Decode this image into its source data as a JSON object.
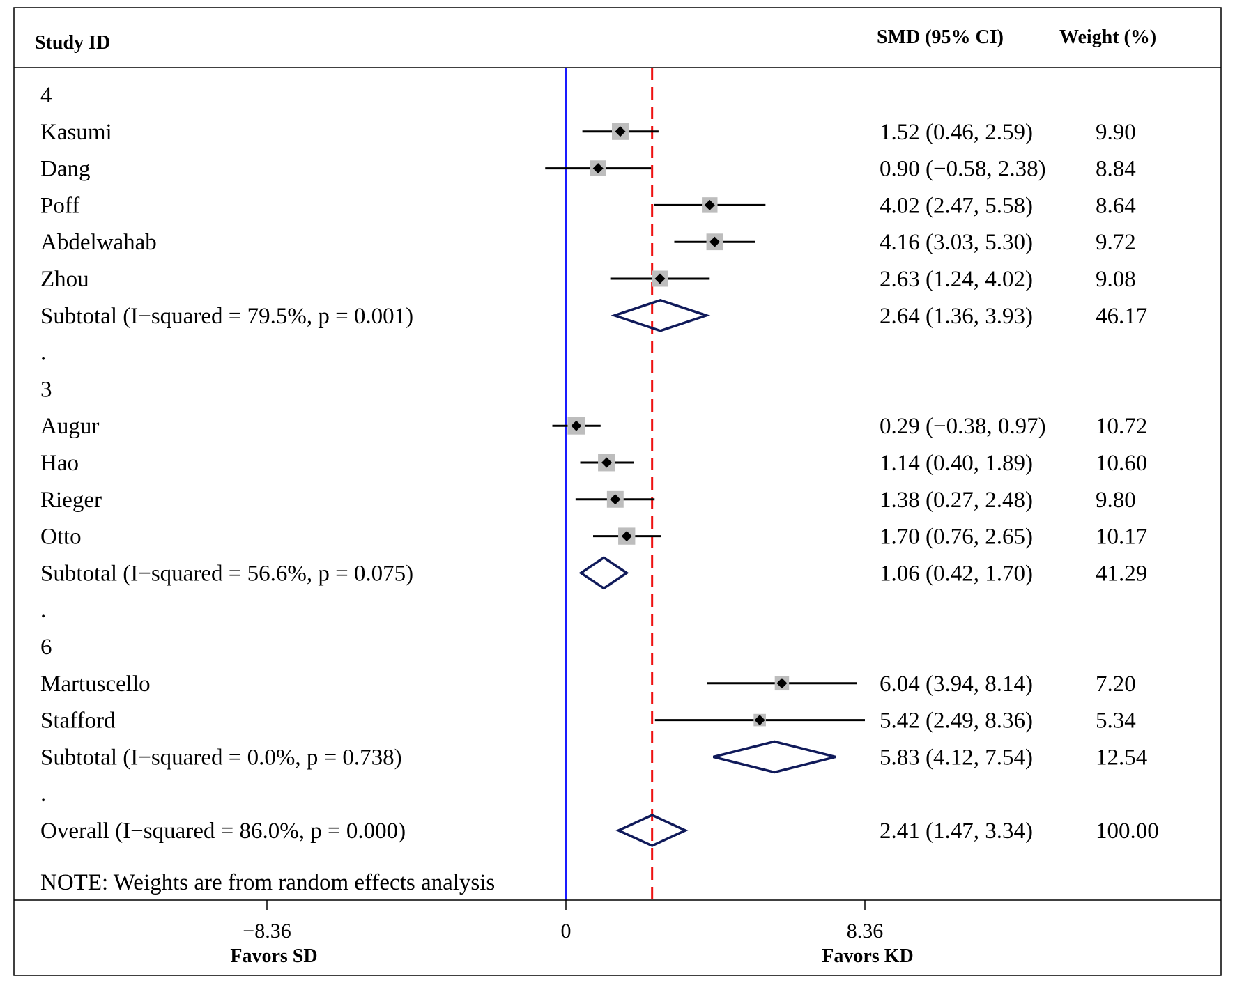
{
  "chart_data": {
    "type": "forest",
    "headers": {
      "study": "Study ID",
      "smd": "SMD (95% CI)",
      "weight": "Weight (%)"
    },
    "xlim": [
      -8.36,
      8.36
    ],
    "ticks": [
      {
        "value": -8.36,
        "label": "−8.36"
      },
      {
        "value": 0,
        "label": "0"
      },
      {
        "value": 8.36,
        "label": "8.36"
      }
    ],
    "null_line": 0,
    "overall_line": 2.41,
    "colors": {
      "null_line": "#1a1aff",
      "overall_line": "#ee1111",
      "diamond": "#101a5a",
      "box": "#bdbdbd",
      "ci": "#000000"
    },
    "xlabel_left": "Favors SD",
    "xlabel_right": "Favors KD",
    "note": "NOTE: Weights are from random effects analysis",
    "rows": [
      {
        "kind": "group",
        "label": "4"
      },
      {
        "kind": "study",
        "label": "Kasumi",
        "est": 1.52,
        "lo": 0.46,
        "hi": 2.59,
        "weight": 9.9,
        "ci_text": "1.52 (0.46, 2.59)",
        "weight_text": "9.90"
      },
      {
        "kind": "study",
        "label": "Dang",
        "est": 0.9,
        "lo": -0.58,
        "hi": 2.38,
        "weight": 8.84,
        "ci_text": "0.90 (−0.58, 2.38)",
        "weight_text": "8.84"
      },
      {
        "kind": "study",
        "label": "Poff",
        "est": 4.02,
        "lo": 2.47,
        "hi": 5.58,
        "weight": 8.64,
        "ci_text": "4.02 (2.47, 5.58)",
        "weight_text": "8.64"
      },
      {
        "kind": "study",
        "label": "Abdelwahab",
        "est": 4.16,
        "lo": 3.03,
        "hi": 5.3,
        "weight": 9.72,
        "ci_text": "4.16 (3.03, 5.30)",
        "weight_text": "9.72"
      },
      {
        "kind": "study",
        "label": "Zhou",
        "est": 2.63,
        "lo": 1.24,
        "hi": 4.02,
        "weight": 9.08,
        "ci_text": "2.63 (1.24, 4.02)",
        "weight_text": "9.08"
      },
      {
        "kind": "subtotal",
        "label": "Subtotal  (I−squared = 79.5%, p = 0.001)",
        "est": 2.64,
        "lo": 1.36,
        "hi": 3.93,
        "weight": 46.17,
        "ci_text": "2.64 (1.36, 3.93)",
        "weight_text": "46.17"
      },
      {
        "kind": "spacer",
        "label": "."
      },
      {
        "kind": "group",
        "label": "3"
      },
      {
        "kind": "study",
        "label": "Augur",
        "est": 0.29,
        "lo": -0.38,
        "hi": 0.97,
        "weight": 10.72,
        "ci_text": "0.29 (−0.38, 0.97)",
        "weight_text": "10.72"
      },
      {
        "kind": "study",
        "label": "Hao",
        "est": 1.14,
        "lo": 0.4,
        "hi": 1.89,
        "weight": 10.6,
        "ci_text": "1.14 (0.40, 1.89)",
        "weight_text": "10.60"
      },
      {
        "kind": "study",
        "label": "Rieger",
        "est": 1.38,
        "lo": 0.27,
        "hi": 2.48,
        "weight": 9.8,
        "ci_text": "1.38 (0.27, 2.48)",
        "weight_text": "9.80"
      },
      {
        "kind": "study",
        "label": "Otto",
        "est": 1.7,
        "lo": 0.76,
        "hi": 2.65,
        "weight": 10.17,
        "ci_text": "1.70 (0.76, 2.65)",
        "weight_text": "10.17"
      },
      {
        "kind": "subtotal",
        "label": "Subtotal  (I−squared = 56.6%, p = 0.075)",
        "est": 1.06,
        "lo": 0.42,
        "hi": 1.7,
        "weight": 41.29,
        "ci_text": "1.06 (0.42, 1.70)",
        "weight_text": "41.29"
      },
      {
        "kind": "spacer",
        "label": "."
      },
      {
        "kind": "group",
        "label": "6"
      },
      {
        "kind": "study",
        "label": "Martuscello",
        "est": 6.04,
        "lo": 3.94,
        "hi": 8.14,
        "weight": 7.2,
        "ci_text": "6.04 (3.94, 8.14)",
        "weight_text": "7.20"
      },
      {
        "kind": "study",
        "label": "Stafford",
        "est": 5.42,
        "lo": 2.49,
        "hi": 8.36,
        "weight": 5.34,
        "ci_text": "5.42 (2.49, 8.36)",
        "weight_text": "5.34"
      },
      {
        "kind": "subtotal",
        "label": "Subtotal  (I−squared = 0.0%, p = 0.738)",
        "est": 5.83,
        "lo": 4.12,
        "hi": 7.54,
        "weight": 12.54,
        "ci_text": "5.83 (4.12, 7.54)",
        "weight_text": "12.54"
      },
      {
        "kind": "spacer",
        "label": "."
      },
      {
        "kind": "overall",
        "label": "Overall  (I−squared = 86.0%, p = 0.000)",
        "est": 2.41,
        "lo": 1.47,
        "hi": 3.34,
        "weight": 100.0,
        "ci_text": "2.41 (1.47, 3.34)",
        "weight_text": "100.00"
      }
    ]
  }
}
